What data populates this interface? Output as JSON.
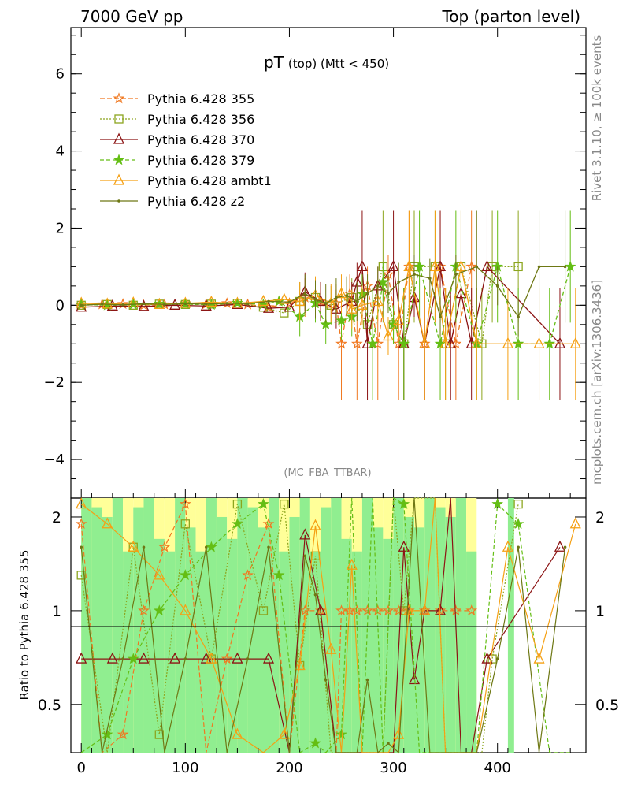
{
  "header": {
    "left": "7000 GeV pp",
    "right": "Top (parton level)"
  },
  "side_text": {
    "rivet": "Rivet 3.1.10, ≥ 100k events",
    "mcplots": "mcplots.cern.ch [arXiv:1306.3436]"
  },
  "chart_data": [
    {
      "type": "line",
      "panel": "main",
      "title_main": "pT",
      "title_sub": "(top) (Mtt < 450)",
      "watermark": "(MC_FBA_TTBAR)",
      "xlim": [
        -10,
        485
      ],
      "ylim": [
        -5,
        7.2
      ],
      "x_ticks": [
        0,
        100,
        200,
        300,
        400
      ],
      "y_ticks": [
        -4,
        -2,
        0,
        2,
        4,
        6
      ],
      "y_tick_labels": [
        "−4",
        "−2",
        "0",
        "2",
        "4",
        "6"
      ],
      "legend_position": "top-left",
      "series": [
        {
          "name": "Pythia 6.428 355",
          "color": "#f07820",
          "dash": "6,3",
          "marker": "star-open",
          "points": [
            [
              0,
              0
            ],
            [
              20,
              0.02
            ],
            [
              40,
              0.03
            ],
            [
              60,
              0.0
            ],
            [
              80,
              0.02
            ],
            [
              100,
              0.05
            ],
            [
              120,
              0.03
            ],
            [
              140,
              0.05
            ],
            [
              160,
              0.02
            ],
            [
              180,
              -0.05
            ],
            [
              200,
              0.05
            ],
            [
              215,
              0.2
            ],
            [
              230,
              0.1
            ],
            [
              245,
              0.05
            ],
            [
              250,
              -1.0
            ],
            [
              258,
              0.3
            ],
            [
              265,
              -1.0
            ],
            [
              275,
              0.5
            ],
            [
              285,
              -1.0
            ],
            [
              295,
              0.8
            ],
            [
              305,
              -1.0
            ],
            [
              315,
              1.0
            ],
            [
              330,
              -1.0
            ],
            [
              345,
              1.0
            ],
            [
              360,
              -1.0
            ],
            [
              375,
              1.0
            ]
          ]
        },
        {
          "name": "Pythia 6.428 356",
          "color": "#8ca51e",
          "dash": "2,2",
          "marker": "square-open",
          "points": [
            [
              0,
              0
            ],
            [
              25,
              0.02
            ],
            [
              50,
              0.0
            ],
            [
              75,
              0.03
            ],
            [
              100,
              0.02
            ],
            [
              125,
              0.03
            ],
            [
              150,
              0.05
            ],
            [
              175,
              -0.05
            ],
            [
              195,
              -0.2
            ],
            [
              210,
              0.1
            ],
            [
              225,
              0.2
            ],
            [
              240,
              0.0
            ],
            [
              260,
              0.2
            ],
            [
              275,
              -0.5
            ],
            [
              290,
              1.0
            ],
            [
              300,
              -0.5
            ],
            [
              310,
              -1.0
            ],
            [
              320,
              1.0
            ],
            [
              340,
              1.0
            ],
            [
              350,
              -1.0
            ],
            [
              365,
              1.0
            ],
            [
              385,
              -1.0
            ],
            [
              395,
              1.0
            ],
            [
              420,
              1.0
            ]
          ]
        },
        {
          "name": "Pythia 6.428 370",
          "color": "#8c1414",
          "dash": "",
          "marker": "triangle-open",
          "points": [
            [
              0,
              -0.05
            ],
            [
              30,
              -0.02
            ],
            [
              60,
              -0.03
            ],
            [
              90,
              0.0
            ],
            [
              120,
              -0.02
            ],
            [
              150,
              0.02
            ],
            [
              180,
              -0.08
            ],
            [
              200,
              -0.05
            ],
            [
              215,
              0.35
            ],
            [
              230,
              0.1
            ],
            [
              245,
              -0.1
            ],
            [
              260,
              0.1
            ],
            [
              265,
              0.6
            ],
            [
              270,
              1.0
            ],
            [
              275,
              -1.0
            ],
            [
              285,
              0.5
            ],
            [
              300,
              1.0
            ],
            [
              310,
              -1.0
            ],
            [
              320,
              0.2
            ],
            [
              330,
              -1.0
            ],
            [
              345,
              1.0
            ],
            [
              355,
              -1.0
            ],
            [
              365,
              0.3
            ],
            [
              375,
              -1.0
            ],
            [
              390,
              1.0
            ],
            [
              460,
              -1.0
            ]
          ]
        },
        {
          "name": "Pythia 6.428 379",
          "color": "#64be14",
          "dash": "5,3",
          "marker": "star",
          "points": [
            [
              0,
              0.02
            ],
            [
              25,
              0.0
            ],
            [
              50,
              0.02
            ],
            [
              75,
              0.04
            ],
            [
              100,
              0.03
            ],
            [
              125,
              0.01
            ],
            [
              150,
              0.06
            ],
            [
              175,
              0.02
            ],
            [
              190,
              0.1
            ],
            [
              210,
              -0.3
            ],
            [
              225,
              0.05
            ],
            [
              235,
              -0.5
            ],
            [
              250,
              -0.4
            ],
            [
              260,
              -0.3
            ],
            [
              270,
              0.3
            ],
            [
              280,
              -1.0
            ],
            [
              290,
              0.6
            ],
            [
              300,
              -0.5
            ],
            [
              310,
              -1.0
            ],
            [
              325,
              1.0
            ],
            [
              345,
              -1.0
            ],
            [
              360,
              1.0
            ],
            [
              380,
              -1.0
            ],
            [
              400,
              1.0
            ],
            [
              420,
              -1.0
            ],
            [
              450,
              -1.0
            ],
            [
              470,
              1.0
            ]
          ]
        },
        {
          "name": "Pythia 6.428 ambt1",
          "color": "#f5a014",
          "dash": "",
          "marker": "triangle-open",
          "points": [
            [
              0,
              0.05
            ],
            [
              25,
              0.03
            ],
            [
              50,
              0.06
            ],
            [
              75,
              0.02
            ],
            [
              100,
              0.05
            ],
            [
              125,
              0.08
            ],
            [
              150,
              0.05
            ],
            [
              175,
              0.1
            ],
            [
              195,
              0.15
            ],
            [
              210,
              0.1
            ],
            [
              225,
              0.25
            ],
            [
              240,
              0.05
            ],
            [
              250,
              0.3
            ],
            [
              260,
              -0.1
            ],
            [
              270,
              0.0
            ],
            [
              285,
              0.1
            ],
            [
              295,
              -0.8
            ],
            [
              305,
              -0.4
            ],
            [
              315,
              1.0
            ],
            [
              330,
              -1.0
            ],
            [
              340,
              1.0
            ],
            [
              350,
              -1.0
            ],
            [
              365,
              1.0
            ],
            [
              380,
              -1.0
            ],
            [
              410,
              -1.0
            ],
            [
              440,
              -1.0
            ],
            [
              475,
              -1.0
            ]
          ]
        },
        {
          "name": "Pythia 6.428 z2",
          "color": "#6e7814",
          "dash": "",
          "marker": "dot",
          "points": [
            [
              0,
              0
            ],
            [
              20,
              0.03
            ],
            [
              40,
              0.01
            ],
            [
              60,
              0.04
            ],
            [
              80,
              0.02
            ],
            [
              100,
              0.04
            ],
            [
              120,
              0.03
            ],
            [
              140,
              0.05
            ],
            [
              160,
              0.04
            ],
            [
              180,
              0.1
            ],
            [
              200,
              0.08
            ],
            [
              215,
              0.3
            ],
            [
              225,
              0.15
            ],
            [
              235,
              0.05
            ],
            [
              245,
              0.2
            ],
            [
              255,
              0.25
            ],
            [
              265,
              0.1
            ],
            [
              275,
              0.3
            ],
            [
              285,
              0.5
            ],
            [
              295,
              0.3
            ],
            [
              305,
              0.6
            ],
            [
              320,
              0.8
            ],
            [
              335,
              0.7
            ],
            [
              345,
              -0.3
            ],
            [
              360,
              0.8
            ],
            [
              380,
              1.0
            ],
            [
              400,
              0.5
            ],
            [
              420,
              -0.3
            ],
            [
              440,
              1.0
            ],
            [
              465,
              1.0
            ]
          ]
        }
      ]
    },
    {
      "type": "line",
      "panel": "ratio",
      "ylabel": "Ratio to Pythia 6.428 355",
      "ylim": [
        0.35,
        2.3
      ],
      "x_ticks": [
        0,
        100,
        200,
        300,
        400
      ],
      "y_ticks": [
        0.5,
        1,
        2
      ],
      "y_tick_labels": [
        "0.5",
        "1",
        "2"
      ]
    }
  ],
  "colors": {
    "band_green": "#90ee90",
    "band_yellow": "#ffff99",
    "frame": "#000000"
  }
}
